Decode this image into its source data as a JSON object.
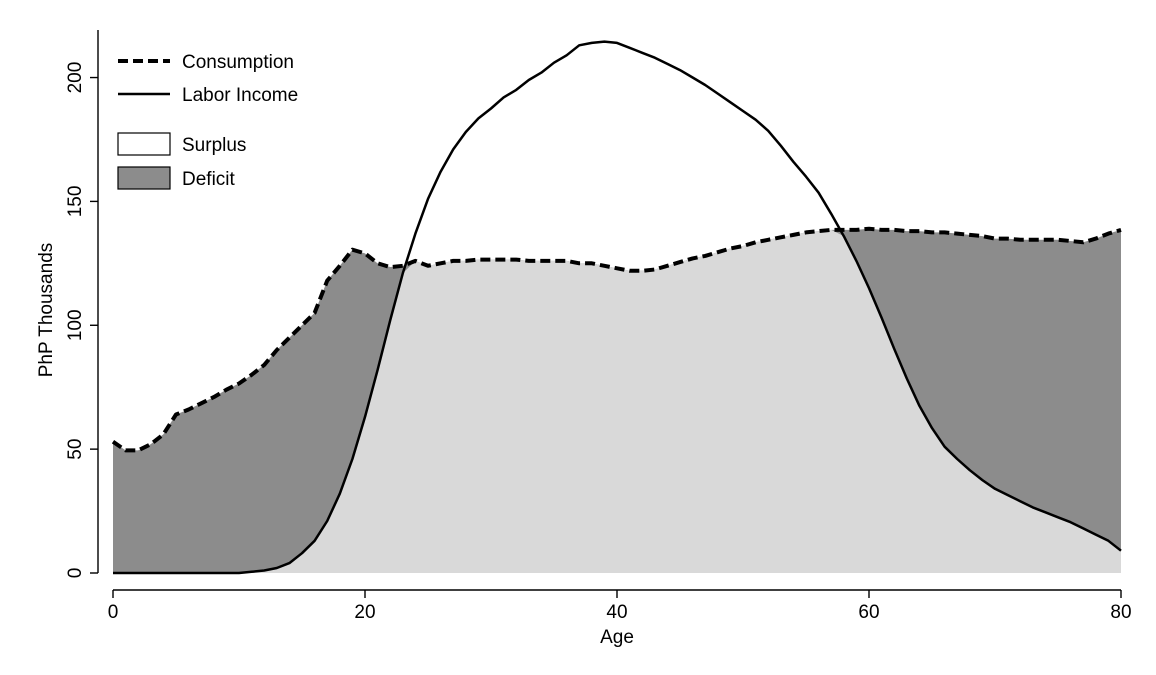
{
  "chart_data": {
    "type": "area",
    "title": "",
    "xlabel": "Age",
    "ylabel": "PhP Thousands",
    "xlim": [
      0,
      80
    ],
    "ylim": [
      0,
      220
    ],
    "x_ticks": [
      0,
      20,
      40,
      60,
      80
    ],
    "y_ticks": [
      0,
      50,
      100,
      150,
      200
    ],
    "grid": false,
    "legend_position": "top-left",
    "legend": {
      "consumption": "Consumption",
      "labor_income": "Labor Income",
      "surplus": "Surplus",
      "deficit": "Deficit"
    },
    "colors": {
      "deficit_fill": "#8c8c8c",
      "surplus_fill": "#d9d9d9",
      "line": "#000000"
    },
    "series": [
      {
        "name": "Consumption",
        "style": "dashed",
        "x": [
          0,
          1,
          2,
          3,
          4,
          5,
          6,
          7,
          8,
          9,
          10,
          11,
          12,
          13,
          14,
          15,
          16,
          17,
          18,
          19,
          20,
          21,
          22,
          23,
          24,
          25,
          26,
          27,
          28,
          29,
          30,
          31,
          32,
          33,
          34,
          35,
          36,
          37,
          38,
          39,
          40,
          41,
          42,
          43,
          44,
          45,
          46,
          47,
          48,
          49,
          50,
          51,
          52,
          53,
          54,
          55,
          56,
          57,
          58,
          59,
          60,
          61,
          62,
          63,
          64,
          65,
          66,
          67,
          68,
          69,
          70,
          71,
          72,
          73,
          74,
          75,
          76,
          77,
          78,
          79,
          80
        ],
        "values": [
          53,
          49.5,
          49.5,
          52,
          56,
          64,
          66,
          68.5,
          71,
          74,
          76.5,
          80,
          84,
          90,
          95,
          100,
          105,
          118,
          124,
          130.5,
          129,
          125,
          123.5,
          124,
          126,
          124,
          125,
          126,
          126,
          126.5,
          126.5,
          126.5,
          126.5,
          126,
          126,
          126,
          126,
          125,
          125,
          124,
          123,
          122,
          122,
          122.5,
          124,
          125.5,
          127,
          128,
          129.5,
          131,
          132,
          133.5,
          134.5,
          135.5,
          136.5,
          137.5,
          138,
          138.5,
          138.5,
          138.5,
          139,
          138.5,
          138.5,
          138,
          138,
          137.5,
          137.5,
          137,
          136.5,
          136,
          135,
          135,
          134.5,
          134.5,
          134.5,
          134.5,
          134,
          133.5,
          135,
          137,
          138.5
        ]
      },
      {
        "name": "Labor Income",
        "style": "solid",
        "x": [
          0,
          1,
          2,
          3,
          4,
          5,
          6,
          7,
          8,
          9,
          10,
          11,
          12,
          13,
          14,
          15,
          16,
          17,
          18,
          19,
          20,
          21,
          22,
          23,
          24,
          25,
          26,
          27,
          28,
          29,
          30,
          31,
          32,
          33,
          34,
          35,
          36,
          37,
          38,
          39,
          40,
          41,
          42,
          43,
          44,
          45,
          46,
          47,
          48,
          49,
          50,
          51,
          52,
          53,
          54,
          55,
          56,
          57,
          58,
          59,
          60,
          61,
          62,
          63,
          64,
          65,
          66,
          67,
          68,
          69,
          70,
          71,
          72,
          73,
          74,
          75,
          76,
          77,
          78,
          79,
          80
        ],
        "values": [
          0,
          0,
          0,
          0,
          0,
          0,
          0,
          0,
          0,
          0,
          0,
          0.5,
          1,
          2,
          4,
          8,
          13,
          21,
          32,
          46,
          63,
          82,
          102,
          121,
          137,
          151,
          162,
          171,
          178,
          183.5,
          187.5,
          192,
          195,
          199,
          202,
          206,
          209,
          213,
          214,
          214.5,
          214,
          212,
          210,
          208,
          205.5,
          203,
          200,
          197,
          193.5,
          190,
          186.5,
          183,
          178.5,
          172.5,
          166,
          160,
          153.5,
          145,
          136,
          126,
          115,
          103,
          90.5,
          78.5,
          67.5,
          58.5,
          51,
          46,
          41.5,
          37.5,
          34,
          31.5,
          29,
          26.5,
          24.5,
          22.5,
          20.5,
          18,
          15.5,
          13,
          9
        ]
      }
    ]
  }
}
